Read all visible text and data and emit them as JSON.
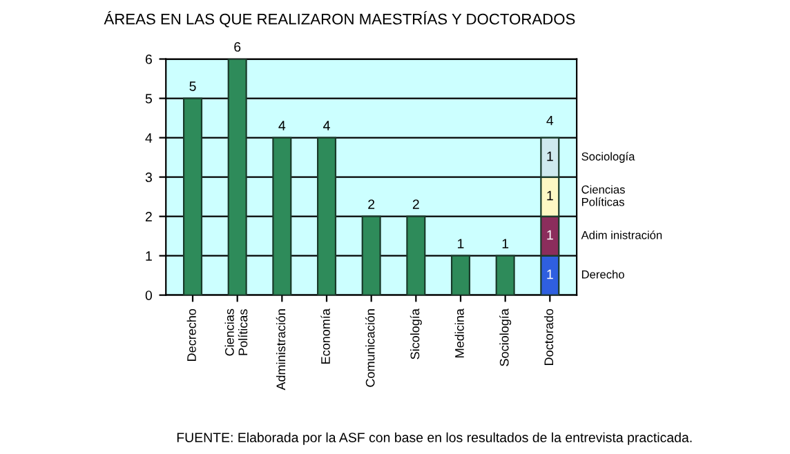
{
  "chart_data": {
    "type": "bar",
    "title": "ÁREAS EN LAS QUE REALIZARON MAESTRÍAS Y DOCTORADOS",
    "categories": [
      "Decrecho",
      "Ciencias\nPolíticas",
      "Administración",
      "Economía",
      "Comunicación",
      "Sicología",
      "Medicina",
      "Sociología",
      "Doctorado"
    ],
    "stacked": true,
    "series": [
      {
        "color": "#2e8b5a",
        "values": [
          5,
          6,
          4,
          4,
          2,
          2,
          1,
          1,
          null
        ]
      },
      {
        "name": "Derecho",
        "color": "#2f5fe0",
        "values": [
          null,
          null,
          null,
          null,
          null,
          null,
          null,
          null,
          1
        ]
      },
      {
        "name": "Adim inistración",
        "color": "#8b2d5c",
        "values": [
          null,
          null,
          null,
          null,
          null,
          null,
          null,
          null,
          1
        ]
      },
      {
        "name": "Ciencias\nPolíticas",
        "color": "#fdf8c4",
        "values": [
          null,
          null,
          null,
          null,
          null,
          null,
          null,
          null,
          1
        ]
      },
      {
        "name": "Sociología",
        "color": "#cfe9ee",
        "values": [
          null,
          null,
          null,
          null,
          null,
          null,
          null,
          null,
          1
        ]
      }
    ],
    "data_labels": true,
    "totals": [
      null,
      null,
      null,
      null,
      null,
      null,
      null,
      null,
      "4"
    ],
    "ylim": [
      0,
      6
    ],
    "yticks": [
      0,
      1,
      2,
      3,
      4,
      5,
      6
    ],
    "grid": "y",
    "legend": false,
    "annotations": [
      "FUENTE: Elaborada por la ASF con base en los resultados de la entrevista practicada."
    ]
  }
}
